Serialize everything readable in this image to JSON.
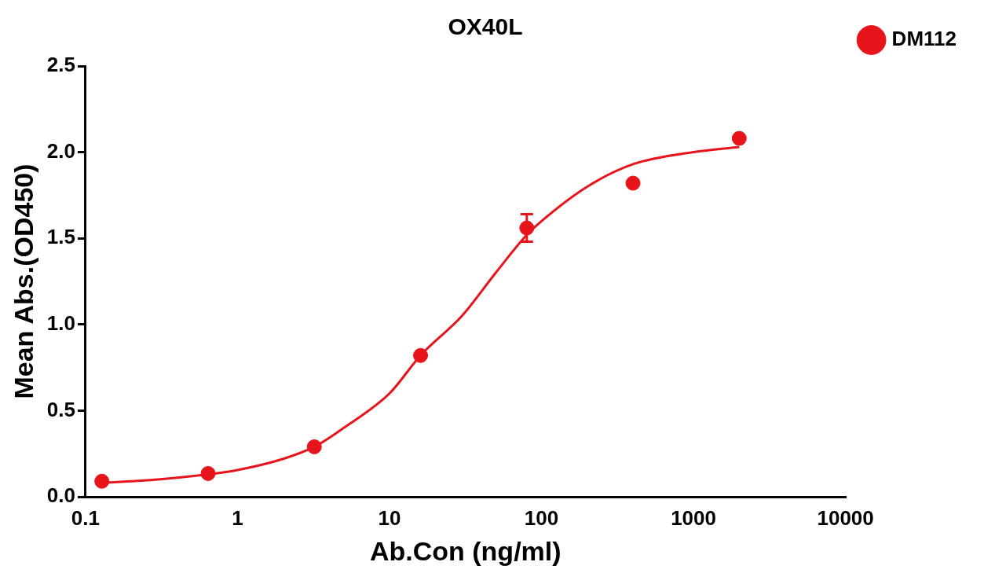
{
  "chart_data": {
    "type": "scatter",
    "title": "OX40L",
    "xlabel": "Ab.Con (ng/ml)",
    "ylabel": "Mean Abs.(OD450)",
    "log": "x",
    "xlim": [
      0.1,
      10000
    ],
    "xticks": [
      0.1,
      1,
      10,
      100,
      1000,
      10000
    ],
    "ylim": [
      0,
      2.5
    ],
    "yticks": [
      {
        "value": 0,
        "label": "0.0"
      },
      {
        "value": 0.5,
        "label": "0.5"
      },
      {
        "value": 1,
        "label": "1.0"
      },
      {
        "value": 1.5,
        "label": "1.5"
      },
      {
        "value": 2,
        "label": "2.0"
      },
      {
        "value": 2.5,
        "label": "2.5"
      }
    ],
    "grid": false,
    "legend": "top right",
    "marker": "circle",
    "series": [
      {
        "name": "DM112",
        "color": "#e8141c",
        "x": [
          0.128,
          0.64,
          3.2,
          16,
          80,
          400,
          2000
        ],
        "values": [
          0.09,
          0.135,
          0.29,
          0.82,
          1.56,
          1.82,
          2.08
        ],
        "errors": [
          null,
          null,
          null,
          null,
          0.08,
          null,
          null
        ]
      },
      {
        "type": "line",
        "marker": "none",
        "color": "#e8141c",
        "x": [
          0.128,
          0.3,
          0.64,
          1,
          2,
          3.2,
          5,
          10,
          16,
          30,
          50,
          80,
          100,
          200,
          400,
          1000,
          2000
        ],
        "values": [
          0.08,
          0.1,
          0.13,
          0.155,
          0.22,
          0.29,
          0.4,
          0.6,
          0.82,
          1.05,
          1.3,
          1.52,
          1.6,
          1.8,
          1.93,
          2.0,
          2.03
        ]
      }
    ]
  }
}
